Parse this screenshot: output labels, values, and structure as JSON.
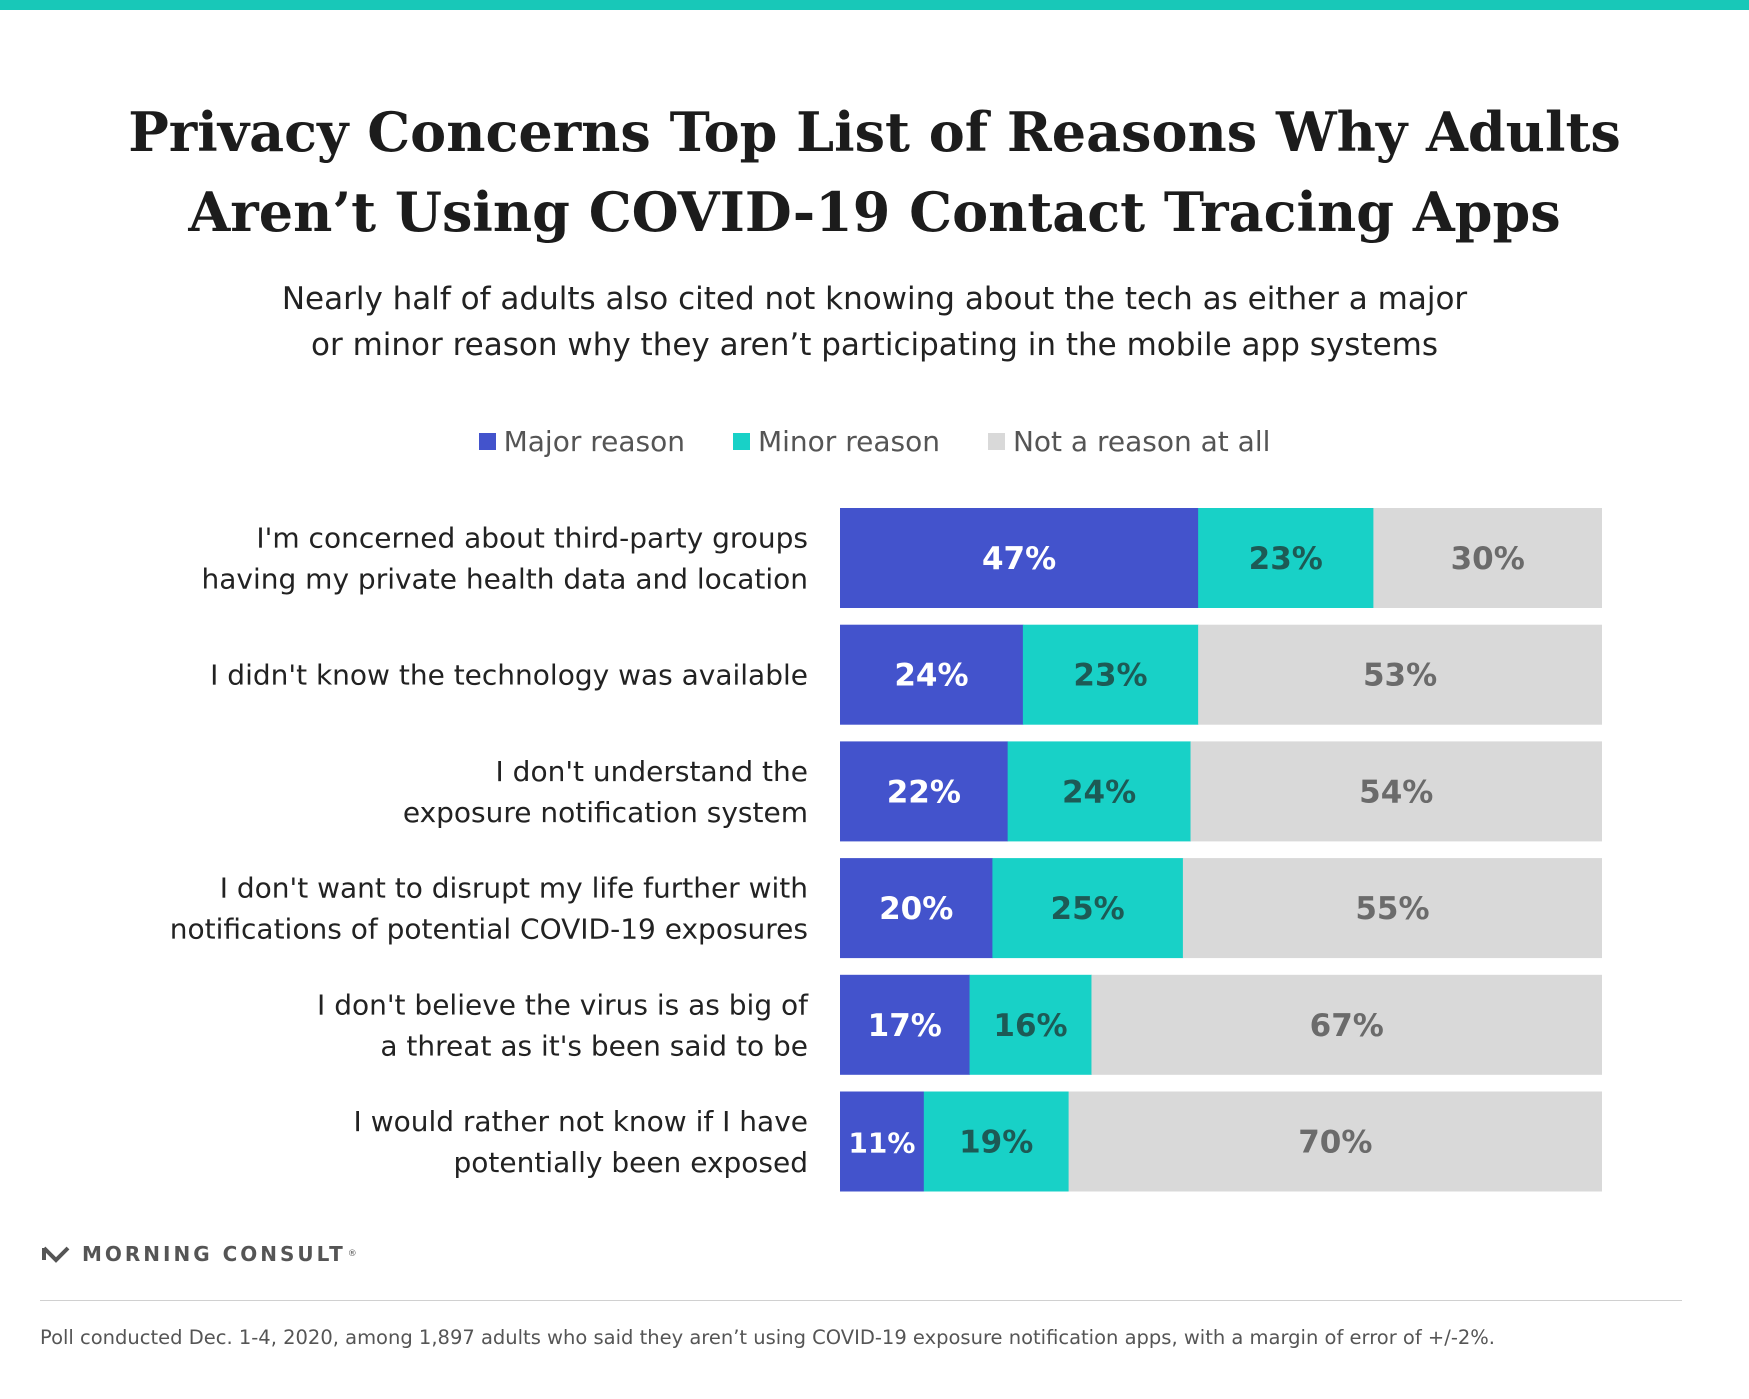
{
  "title_lines": [
    "Privacy Concerns Top List of Reasons Why Adults",
    "Aren’t Using COVID-19 Contact Tracing Apps"
  ],
  "subtitle_lines": [
    "Nearly half of adults also cited not knowing about the tech as either a major",
    "or minor reason why they aren’t participating in the mobile app systems"
  ],
  "legend": [
    {
      "label": "Major reason",
      "color": "#4353cc"
    },
    {
      "label": "Minor reason",
      "color": "#18d1c7"
    },
    {
      "label": "Not a reason at all",
      "color": "#d9d9d9"
    }
  ],
  "chart_data": {
    "type": "bar",
    "orientation": "horizontal",
    "stacked": true,
    "xlim": [
      0,
      100
    ],
    "categories": [
      [
        "I'm concerned about third-party groups",
        "having my private health data and location"
      ],
      [
        "I didn't know the technology was available"
      ],
      [
        "I don't understand the",
        "exposure notification system"
      ],
      [
        "I don't want to disrupt my life further with",
        "notifications of potential COVID-19 exposures"
      ],
      [
        "I don't believe the virus is as big of",
        "a threat  as it's been said to be"
      ],
      [
        "I would rather not know if I have",
        "potentially been exposed"
      ]
    ],
    "series": [
      {
        "name": "Major reason",
        "color": "#4353cc",
        "label_color": "#ffffff",
        "values": [
          47,
          24,
          22,
          20,
          17,
          11
        ]
      },
      {
        "name": "Minor reason",
        "color": "#18d1c7",
        "label_color": "#1d5a55",
        "values": [
          23,
          23,
          24,
          25,
          16,
          19
        ]
      },
      {
        "name": "Not a reason at all",
        "color": "#d9d9d9",
        "label_color": "#6b6b6b",
        "values": [
          30,
          53,
          54,
          55,
          67,
          70
        ]
      }
    ],
    "value_suffix": "%"
  },
  "brand": "MORNING CONSULT",
  "brand_mark": "®",
  "footnote": "Poll conducted Dec. 1-4, 2020, among 1,897 adults who said they aren’t using COVID-19 exposure notification apps, with a margin of error of +/-2%."
}
